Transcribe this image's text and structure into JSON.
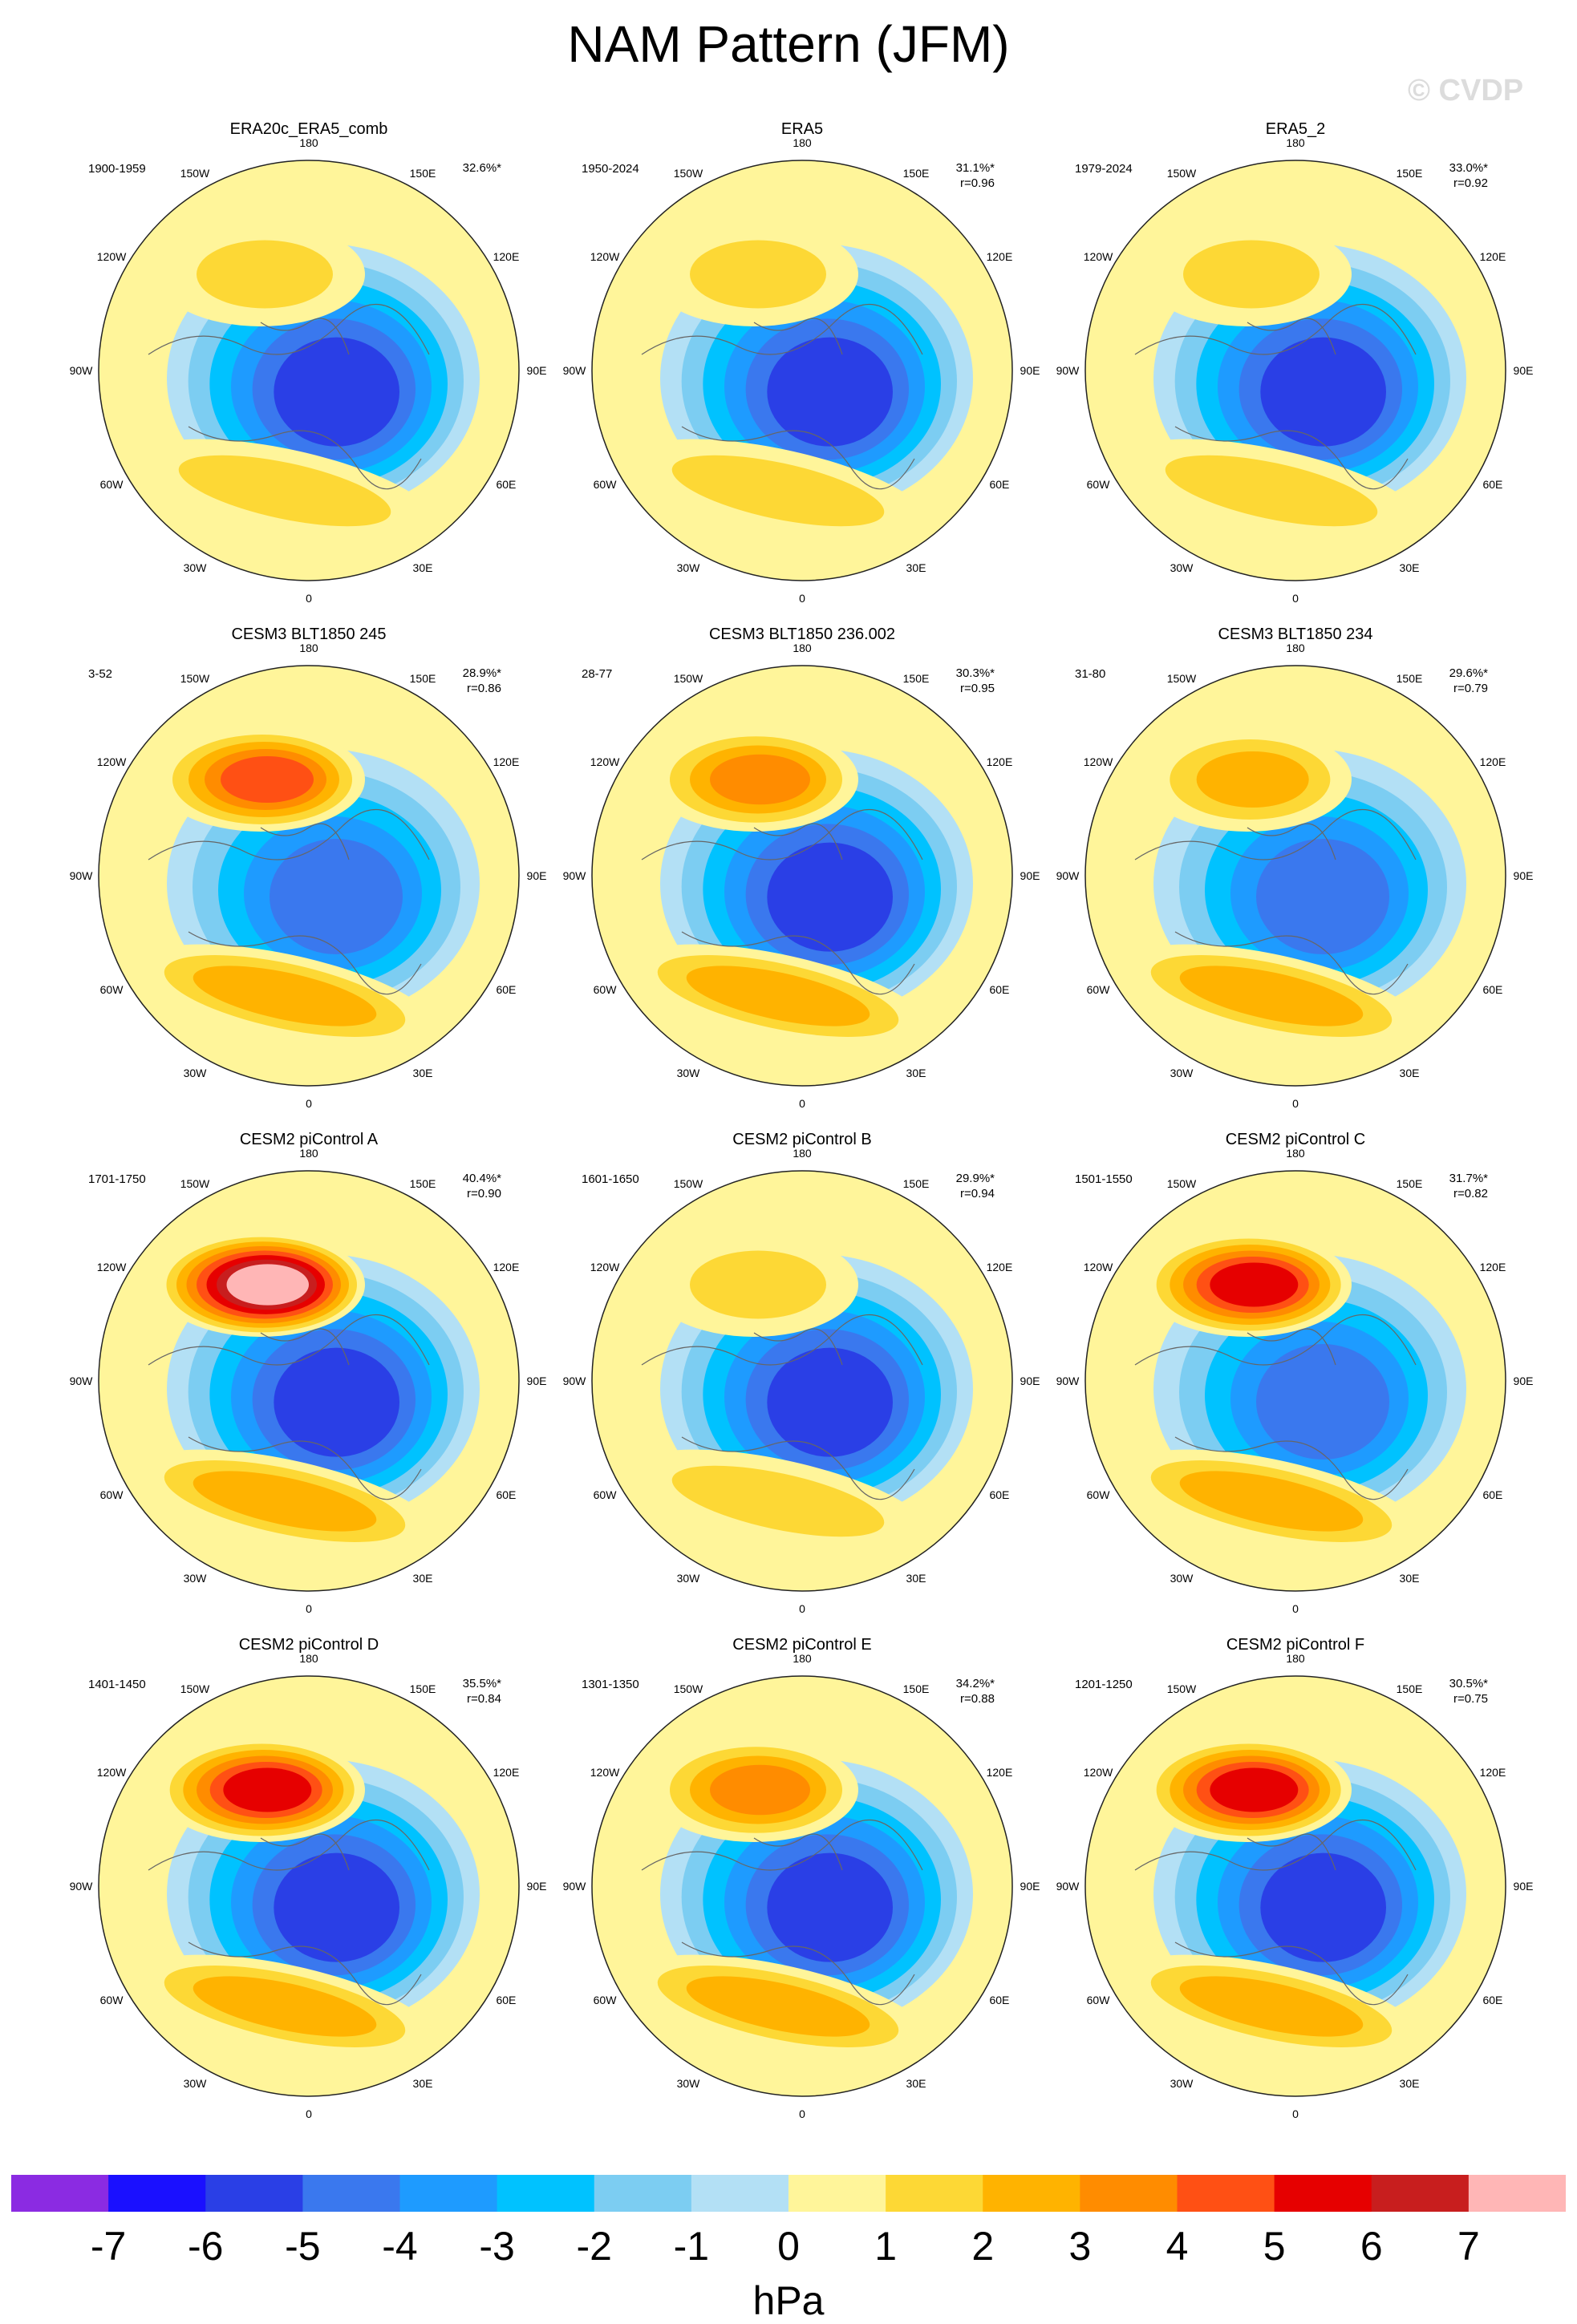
{
  "title": "NAM Pattern (JFM)",
  "watermark": "© CVDP",
  "lon_labels": [
    "180",
    "150E",
    "120E",
    "90E",
    "60E",
    "30E",
    "0",
    "30W",
    "60W",
    "90W",
    "120W",
    "150W"
  ],
  "colorbar": {
    "unit": "hPa",
    "ticks": [
      "-7",
      "-6",
      "-5",
      "-4",
      "-3",
      "-2",
      "-1",
      "0",
      "1",
      "2",
      "3",
      "4",
      "5",
      "6",
      "7"
    ],
    "colors": [
      "#8b2be2",
      "#1a10ff",
      "#2a3fe6",
      "#3a78ee",
      "#1e9bff",
      "#00c2ff",
      "#7ccdf2",
      "#b3e0f5",
      "#fff59a",
      "#fdd835",
      "#ffb300",
      "#ff8c00",
      "#ff5014",
      "#e60000",
      "#c81e1e",
      "#ffb6b6"
    ]
  },
  "panels": [
    {
      "title": "ERA20c_ERA5_comb",
      "years": "1900-1959",
      "pct": "32.6%*",
      "r": "",
      "hi": 1.8,
      "lo": -5.5
    },
    {
      "title": "ERA5",
      "years": "1950-2024",
      "pct": "31.1%*",
      "r": "r=0.96",
      "hi": 1.2,
      "lo": -5.5
    },
    {
      "title": "ERA5_2",
      "years": "1979-2024",
      "pct": "33.0%*",
      "r": "r=0.92",
      "hi": 1.7,
      "lo": -6.0
    },
    {
      "title": "CESM3 BLT1850 245",
      "years": "3-52",
      "pct": "28.9%*",
      "r": "r=0.86",
      "hi": 4.6,
      "lo": -4.8
    },
    {
      "title": "CESM3 BLT1850 236.002",
      "years": "28-77",
      "pct": "30.3%*",
      "r": "r=0.95",
      "hi": 3.3,
      "lo": -5.5
    },
    {
      "title": "CESM3 BLT1850 234",
      "years": "31-80",
      "pct": "29.6%*",
      "r": "r=0.79",
      "hi": 3.0,
      "lo": -4.8
    },
    {
      "title": "CESM2 piControl A",
      "years": "1701-1750",
      "pct": "40.4%*",
      "r": "r=0.90",
      "hi": 7.2,
      "lo": -5.6
    },
    {
      "title": "CESM2 piControl B",
      "years": "1601-1650",
      "pct": "29.9%*",
      "r": "r=0.94",
      "hi": 2.0,
      "lo": -5.8
    },
    {
      "title": "CESM2 piControl C",
      "years": "1501-1550",
      "pct": "31.7%*",
      "r": "r=0.82",
      "hi": 5.6,
      "lo": -5.0
    },
    {
      "title": "CESM2 piControl D",
      "years": "1401-1450",
      "pct": "35.5%*",
      "r": "r=0.84",
      "hi": 5.2,
      "lo": -5.6
    },
    {
      "title": "CESM2 piControl E",
      "years": "1301-1350",
      "pct": "34.2%*",
      "r": "r=0.88",
      "hi": 4.0,
      "lo": -5.8
    },
    {
      "title": "CESM2 piControl F",
      "years": "1201-1250",
      "pct": "30.5%*",
      "r": "r=0.75",
      "hi": 6.0,
      "lo": -5.2
    }
  ]
}
